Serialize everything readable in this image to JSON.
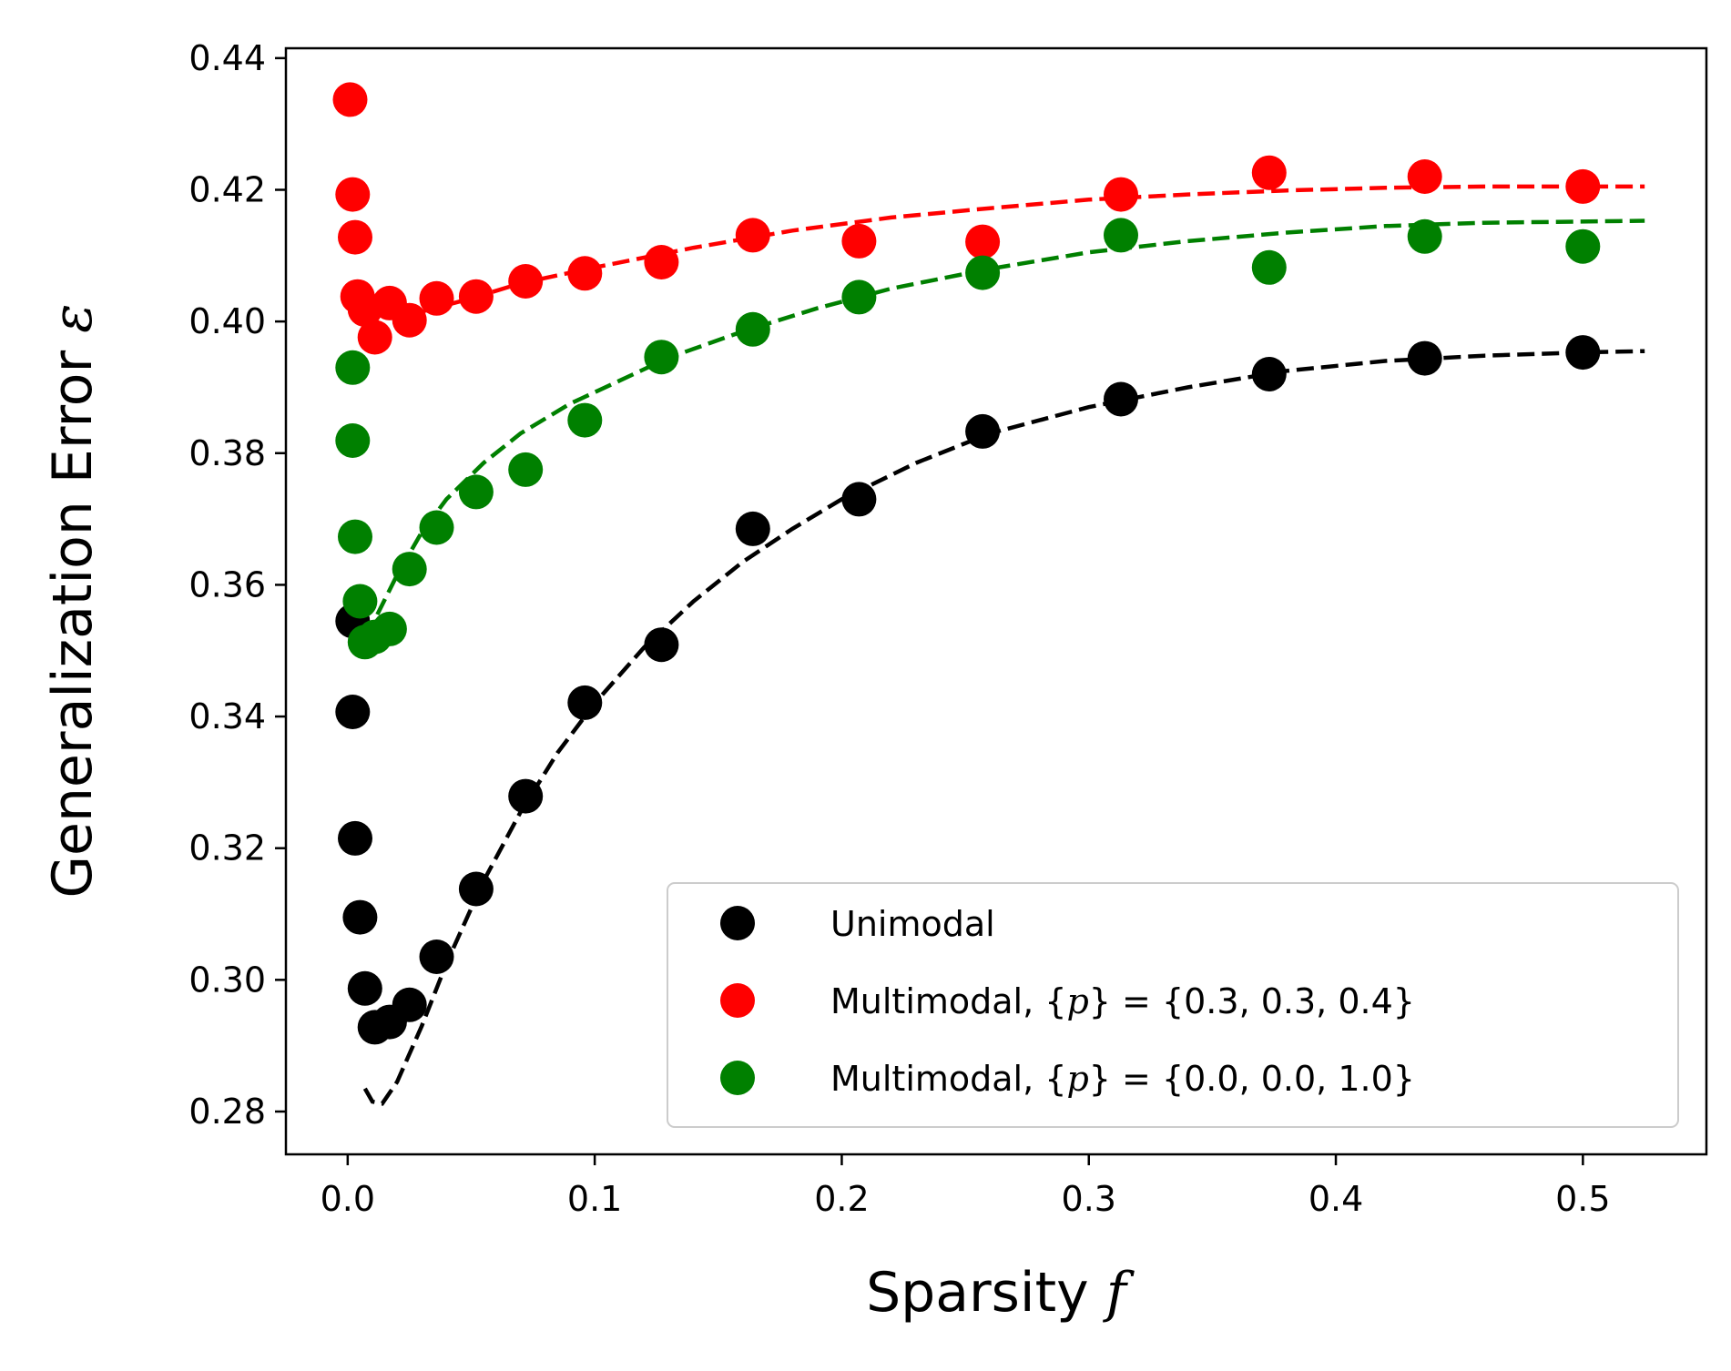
{
  "chart_data": {
    "type": "scatter",
    "title": "",
    "xlabel": "Sparsity f",
    "xlabel_parts": {
      "text": "Sparsity ",
      "symbol": "f"
    },
    "ylabel": "Generalization Error ε",
    "ylabel_parts": {
      "text": "Generalization Error ",
      "symbol": "ε"
    },
    "xlim": [
      -0.025,
      0.55
    ],
    "ylim": [
      0.2735,
      0.4415
    ],
    "x_ticks": [
      0.0,
      0.1,
      0.2,
      0.3,
      0.4,
      0.5
    ],
    "x_tick_labels": [
      "0.0",
      "0.1",
      "0.2",
      "0.3",
      "0.4",
      "0.5"
    ],
    "y_ticks": [
      0.28,
      0.3,
      0.32,
      0.34,
      0.36,
      0.38,
      0.4,
      0.42,
      0.44
    ],
    "y_tick_labels": [
      "0.28",
      "0.30",
      "0.32",
      "0.34",
      "0.36",
      "0.38",
      "0.40",
      "0.42",
      "0.44"
    ],
    "grid": false,
    "legend_position": "lower-right",
    "series": [
      {
        "name": "Unimodal",
        "legend_html": "Unimodal",
        "color": "#000000",
        "points": [
          [
            0.002,
            0.3545
          ],
          [
            0.002,
            0.3407
          ],
          [
            0.003,
            0.3215
          ],
          [
            0.005,
            0.3095
          ],
          [
            0.007,
            0.2987
          ],
          [
            0.011,
            0.2928
          ],
          [
            0.017,
            0.2936
          ],
          [
            0.025,
            0.2962
          ],
          [
            0.036,
            0.3035
          ],
          [
            0.052,
            0.3138
          ],
          [
            0.072,
            0.3279
          ],
          [
            0.096,
            0.3421
          ],
          [
            0.127,
            0.3509
          ],
          [
            0.164,
            0.3685
          ],
          [
            0.207,
            0.373
          ],
          [
            0.257,
            0.3833
          ],
          [
            0.313,
            0.3882
          ],
          [
            0.373,
            0.392
          ],
          [
            0.436,
            0.3944
          ],
          [
            0.5,
            0.3953
          ]
        ],
        "fit": [
          [
            0.007,
            0.2835
          ],
          [
            0.01,
            0.2815
          ],
          [
            0.014,
            0.2812
          ],
          [
            0.02,
            0.2845
          ],
          [
            0.03,
            0.293
          ],
          [
            0.04,
            0.3025
          ],
          [
            0.055,
            0.315
          ],
          [
            0.07,
            0.3255
          ],
          [
            0.085,
            0.3345
          ],
          [
            0.1,
            0.342
          ],
          [
            0.12,
            0.3505
          ],
          [
            0.14,
            0.3575
          ],
          [
            0.16,
            0.3635
          ],
          [
            0.18,
            0.3685
          ],
          [
            0.2,
            0.373
          ],
          [
            0.23,
            0.3785
          ],
          [
            0.26,
            0.383
          ],
          [
            0.3,
            0.387
          ],
          [
            0.34,
            0.39
          ],
          [
            0.38,
            0.3925
          ],
          [
            0.42,
            0.394
          ],
          [
            0.46,
            0.3948
          ],
          [
            0.5,
            0.3953
          ],
          [
            0.525,
            0.3955
          ]
        ]
      },
      {
        "name": "Multimodal, {p} = {0.3, 0.3, 0.4}",
        "legend_html": "Multimodal, {<tspan font-style=\"italic\" font-family=\"DejaVu Serif, serif\">p</tspan>} = {0.3, 0.3, 0.4}",
        "color": "#ff0000",
        "points": [
          [
            0.001,
            0.4337
          ],
          [
            0.002,
            0.4193
          ],
          [
            0.003,
            0.4128
          ],
          [
            0.004,
            0.4038
          ],
          [
            0.007,
            0.4018
          ],
          [
            0.011,
            0.3976
          ],
          [
            0.017,
            0.4028
          ],
          [
            0.025,
            0.4002
          ],
          [
            0.036,
            0.4035
          ],
          [
            0.052,
            0.4038
          ],
          [
            0.072,
            0.4061
          ],
          [
            0.096,
            0.4073
          ],
          [
            0.127,
            0.409
          ],
          [
            0.164,
            0.4131
          ],
          [
            0.207,
            0.4122
          ],
          [
            0.257,
            0.4121
          ],
          [
            0.313,
            0.4193
          ],
          [
            0.373,
            0.4226
          ],
          [
            0.436,
            0.422
          ],
          [
            0.5,
            0.4205
          ]
        ],
        "fit": [
          [
            0.03,
            0.4015
          ],
          [
            0.05,
            0.4035
          ],
          [
            0.07,
            0.4058
          ],
          [
            0.1,
            0.4082
          ],
          [
            0.14,
            0.4112
          ],
          [
            0.18,
            0.4138
          ],
          [
            0.22,
            0.4158
          ],
          [
            0.26,
            0.4172
          ],
          [
            0.3,
            0.4185
          ],
          [
            0.34,
            0.4193
          ],
          [
            0.38,
            0.4199
          ],
          [
            0.42,
            0.4203
          ],
          [
            0.46,
            0.4205
          ],
          [
            0.525,
            0.4205
          ]
        ]
      },
      {
        "name": "Multimodal, {p} = {0.0, 0.0, 1.0}",
        "legend_html": "Multimodal, {<tspan font-style=\"italic\" font-family=\"DejaVu Serif, serif\">p</tspan>} = {0.0, 0.0, 1.0}",
        "color": "#008000",
        "points": [
          [
            0.002,
            0.393
          ],
          [
            0.002,
            0.3819
          ],
          [
            0.003,
            0.3673
          ],
          [
            0.005,
            0.3575
          ],
          [
            0.007,
            0.3513
          ],
          [
            0.011,
            0.3521
          ],
          [
            0.017,
            0.3533
          ],
          [
            0.025,
            0.3624
          ],
          [
            0.036,
            0.3687
          ],
          [
            0.052,
            0.3741
          ],
          [
            0.072,
            0.3775
          ],
          [
            0.096,
            0.385
          ],
          [
            0.127,
            0.3946
          ],
          [
            0.164,
            0.3988
          ],
          [
            0.207,
            0.4037
          ],
          [
            0.257,
            0.4074
          ],
          [
            0.313,
            0.4131
          ],
          [
            0.373,
            0.4082
          ],
          [
            0.436,
            0.4129
          ],
          [
            0.5,
            0.4114
          ]
        ],
        "fit": [
          [
            0.012,
            0.3555
          ],
          [
            0.02,
            0.3615
          ],
          [
            0.03,
            0.368
          ],
          [
            0.04,
            0.373
          ],
          [
            0.055,
            0.3785
          ],
          [
            0.07,
            0.383
          ],
          [
            0.09,
            0.3875
          ],
          [
            0.11,
            0.391
          ],
          [
            0.13,
            0.3945
          ],
          [
            0.16,
            0.3985
          ],
          [
            0.19,
            0.402
          ],
          [
            0.22,
            0.405
          ],
          [
            0.26,
            0.408
          ],
          [
            0.3,
            0.4105
          ],
          [
            0.34,
            0.4122
          ],
          [
            0.38,
            0.4135
          ],
          [
            0.42,
            0.4145
          ],
          [
            0.46,
            0.415
          ],
          [
            0.525,
            0.4153
          ]
        ]
      }
    ]
  }
}
